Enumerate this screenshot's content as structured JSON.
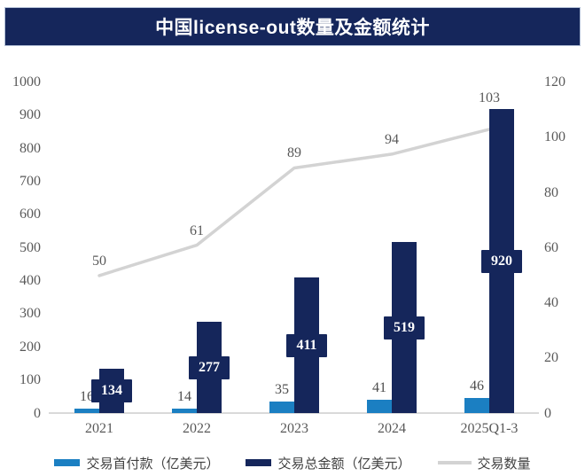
{
  "title": "中国license-out数量及金额统计",
  "colors": {
    "banner_bg": "#15265b",
    "banner_text": "#ffffff",
    "first_payment_blue": "#1b7fc2",
    "total_amount_navy": "#15265b",
    "deal_count_gray": "#d3d3d3",
    "axis_text": "#595959",
    "value_label_text": "#4d4d4d",
    "legend_text": "#404040",
    "axis_line": "#d9d9d9"
  },
  "chart_data": {
    "type": "bar",
    "subtype": "combo-dual-axis-bar-line",
    "title": "中国license-out数量及金额统计",
    "categories": [
      "2021",
      "2022",
      "2023",
      "2024",
      "2025Q1-3"
    ],
    "series": [
      {
        "name": "交易首付款（亿美元）",
        "type": "bar",
        "axis": "left",
        "color": "#1b7fc2",
        "values": [
          16,
          14,
          35,
          41,
          46
        ],
        "labels_boxed": false
      },
      {
        "name": "交易总金额（亿美元）",
        "type": "bar",
        "axis": "left",
        "color": "#15265b",
        "values": [
          134,
          277,
          411,
          519,
          920
        ],
        "labels_boxed": true
      },
      {
        "name": "交易数量",
        "type": "line",
        "axis": "right",
        "color": "#d3d3d3",
        "values": [
          50,
          61,
          89,
          94,
          103
        ],
        "labels_boxed": false
      }
    ],
    "left_axis": {
      "min": 0,
      "max": 1000,
      "step": 100,
      "ticks": [
        0,
        100,
        200,
        300,
        400,
        500,
        600,
        700,
        800,
        900,
        1000
      ]
    },
    "right_axis": {
      "min": 0,
      "max": 120,
      "step": 20,
      "ticks": [
        0,
        20,
        40,
        60,
        80,
        100,
        120
      ]
    },
    "grid": false,
    "data_labels": true,
    "legend_position": "bottom"
  }
}
